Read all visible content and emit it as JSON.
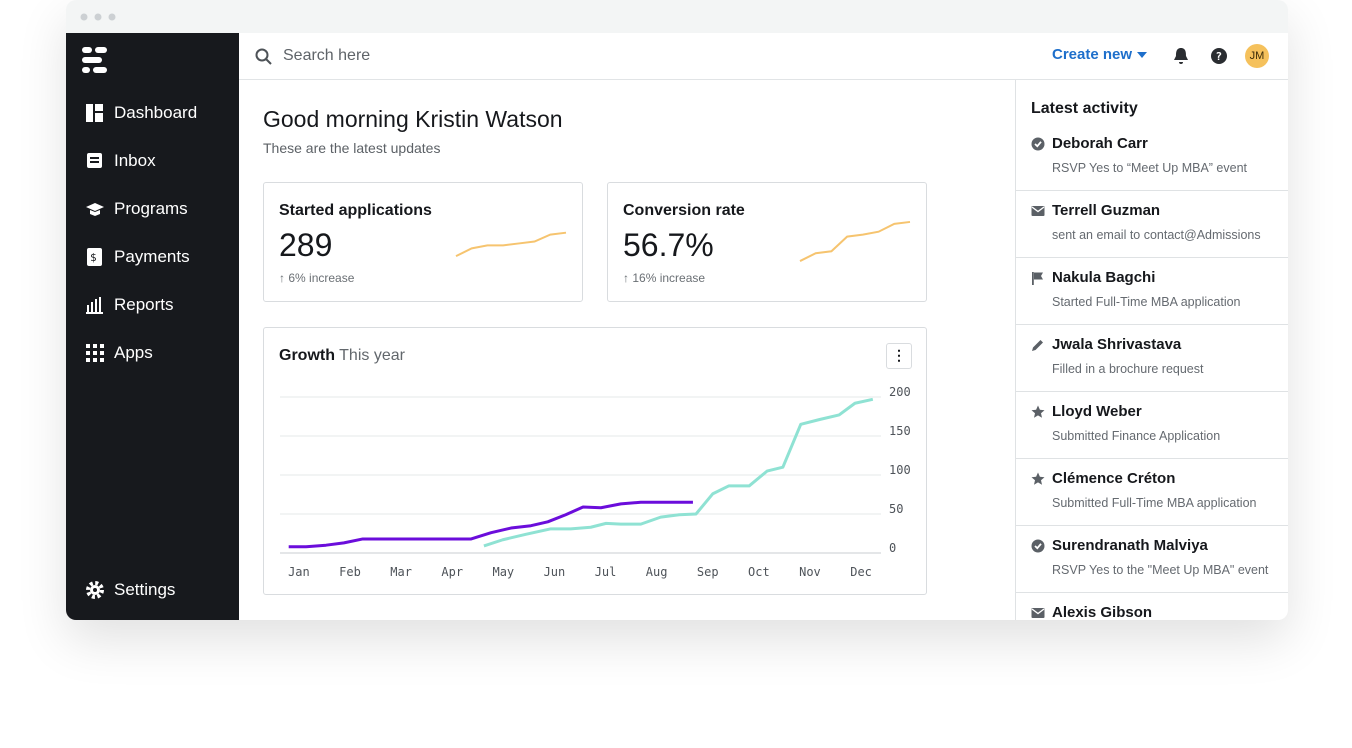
{
  "sidebar": {
    "items": [
      "Dashboard",
      "Inbox",
      "Programs",
      "Payments",
      "Reports",
      "Apps"
    ],
    "settings": "Settings"
  },
  "header": {
    "search_placeholder": "Search here",
    "create_button": "Create new",
    "avatar": "JM"
  },
  "greeting": {
    "title": "Good morning Kristin Watson",
    "subtitle": "These are the latest updates"
  },
  "cards": [
    {
      "title": "Started applications",
      "value": "289",
      "change": "6% increase",
      "trend": {
        "values": [
          7,
          15,
          18,
          18,
          20,
          22,
          29,
          31
        ],
        "ylim": [
          0,
          45
        ],
        "color": "#f6c46f"
      }
    },
    {
      "title": "Conversion rate",
      "value": "56.7%",
      "change": "16% increase",
      "trend": {
        "values": [
          2,
          10,
          12,
          27,
          29,
          32,
          40,
          42
        ],
        "ylim": [
          0,
          45
        ],
        "color": "#f6c46f"
      }
    }
  ],
  "growth": {
    "title": "Growth",
    "subtitle": "This year",
    "chart_data": {
      "type": "line",
      "xlim": [
        0.63,
        12.39
      ],
      "ylim": [
        0,
        200
      ],
      "yticks": [
        0,
        50,
        100,
        150,
        200
      ],
      "grid": true,
      "xticks": [
        {
          "value": 1,
          "label": "Jan"
        },
        {
          "value": 2,
          "label": "Feb"
        },
        {
          "value": 3,
          "label": "Mar"
        },
        {
          "value": 4,
          "label": "Apr"
        },
        {
          "value": 5,
          "label": "May"
        },
        {
          "value": 6,
          "label": "Jun"
        },
        {
          "value": 7,
          "label": "Jul"
        },
        {
          "value": 8,
          "label": "Aug"
        },
        {
          "value": 9,
          "label": "Sep"
        },
        {
          "value": 10,
          "label": "Oct"
        },
        {
          "value": 11,
          "label": "Nov"
        },
        {
          "value": 12,
          "label": "Dec"
        }
      ],
      "series": [
        {
          "color": "#6b0ddb",
          "x": [
            0.8,
            1.14,
            1.53,
            1.88,
            2.25,
            2.6,
            3.0,
            3.39,
            3.78,
            4.37,
            4.76,
            5.15,
            5.54,
            5.87,
            6.22,
            6.56,
            6.91,
            7.3,
            7.69,
            8.08,
            8.71
          ],
          "values": [
            8,
            8,
            10,
            13,
            18,
            18,
            18,
            18,
            18,
            18,
            26,
            32,
            35,
            40,
            49,
            59,
            58,
            63,
            65,
            65,
            65
          ]
        },
        {
          "color": "#8fe2d3",
          "x": [
            4.62,
            4.99,
            5.44,
            5.93,
            6.32,
            6.71,
            7.01,
            7.3,
            7.69,
            8.08,
            8.44,
            8.77,
            9.1,
            9.41,
            9.81,
            10.16,
            10.47,
            10.82,
            11.18,
            11.57,
            11.88,
            12.23
          ],
          "values": [
            9,
            17,
            24,
            31,
            31,
            33,
            38,
            37,
            37,
            46,
            49,
            50,
            76,
            86,
            86,
            105,
            110,
            165,
            171,
            177,
            192,
            197
          ]
        }
      ]
    }
  },
  "activity": {
    "title": "Latest activity",
    "items": [
      {
        "icon": "check",
        "name": "Deborah Carr",
        "text": "RSVP Yes to “Meet Up MBA” event"
      },
      {
        "icon": "mail",
        "name": "Terrell Guzman",
        "text": "sent an email to contact@Admissions"
      },
      {
        "icon": "flag",
        "name": "Nakula Bagchi",
        "text": "Started Full-Time MBA application"
      },
      {
        "icon": "pencil",
        "name": "Jwala Shrivastava",
        "text": "Filled in a brochure request"
      },
      {
        "icon": "star",
        "name": "Lloyd Weber",
        "text": "Submitted Finance Application"
      },
      {
        "icon": "star",
        "name": "Clémence Créton",
        "text": "Submitted Full-Time MBA application"
      },
      {
        "icon": "check",
        "name": "Surendranath Malviya",
        "text": "RSVP Yes to the \"Meet Up MBA\" event"
      },
      {
        "icon": "mail",
        "name": "Alexis Gibson",
        "text": ""
      }
    ]
  }
}
